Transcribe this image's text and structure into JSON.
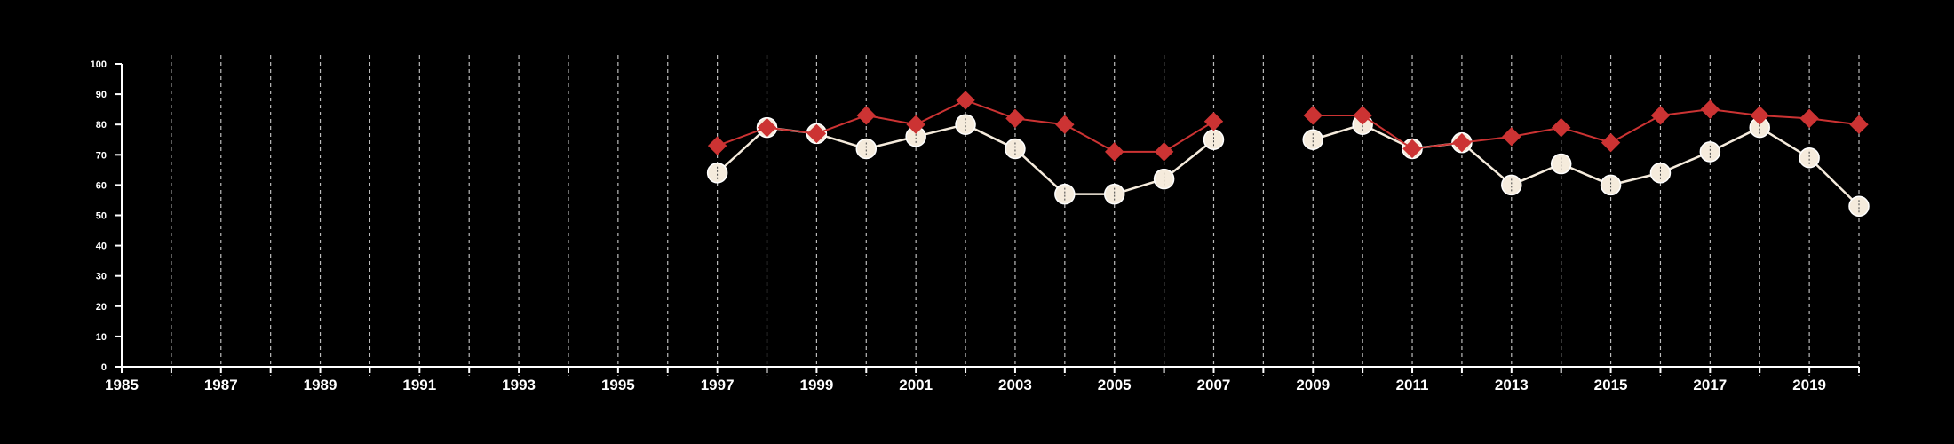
{
  "chart_data": {
    "type": "line",
    "title": "",
    "xlabel": "",
    "ylabel": "",
    "xlim": [
      1985,
      2020
    ],
    "ylim": [
      0,
      100
    ],
    "grid": "vertical dashed lines at each year",
    "x_ticks": [
      1985,
      1986,
      1987,
      1988,
      1989,
      1990,
      1991,
      1992,
      1993,
      1994,
      1995,
      1996,
      1997,
      1998,
      1999,
      2000,
      2001,
      2002,
      2003,
      2004,
      2005,
      2006,
      2007,
      2008,
      2009,
      2010,
      2011,
      2012,
      2013,
      2014,
      2015,
      2016,
      2017,
      2018,
      2019,
      2020
    ],
    "x_tick_labels": [
      "1985",
      "1987",
      "1989",
      "1991",
      "1993",
      "1995",
      "1997",
      "1999",
      "2001",
      "2003",
      "2005",
      "2007",
      "2009",
      "2011",
      "2013",
      "2015",
      "2017",
      "2019"
    ],
    "y_ticks": [
      0,
      10,
      20,
      30,
      40,
      50,
      60,
      70,
      80,
      90,
      100
    ],
    "y_tick_labels": [
      "0",
      "10",
      "20",
      "30",
      "40",
      "50",
      "60",
      "70",
      "80",
      "90",
      "100"
    ],
    "series": [
      {
        "marker": "diamond",
        "color": "#cc3333",
        "segments": [
          [
            [
              1997,
              73
            ],
            [
              1998,
              79
            ],
            [
              1999,
              77
            ],
            [
              2000,
              83
            ],
            [
              2001,
              80
            ],
            [
              2002,
              88
            ],
            [
              2003,
              82
            ],
            [
              2004,
              80
            ],
            [
              2005,
              71
            ],
            [
              2006,
              71
            ],
            [
              2007,
              81
            ]
          ],
          [
            [
              2009,
              83
            ],
            [
              2010,
              83
            ],
            [
              2011,
              72
            ],
            [
              2012,
              74
            ],
            [
              2013,
              76
            ],
            [
              2014,
              79
            ],
            [
              2015,
              74
            ],
            [
              2016,
              83
            ],
            [
              2017,
              85
            ],
            [
              2018,
              83
            ],
            [
              2019,
              82
            ],
            [
              2020,
              80
            ]
          ]
        ]
      },
      {
        "marker": "circle",
        "color": "#f5ebdc",
        "segments": [
          [
            [
              1997,
              64
            ],
            [
              1998,
              79
            ],
            [
              1999,
              77
            ],
            [
              2000,
              72
            ],
            [
              2001,
              76
            ],
            [
              2002,
              80
            ],
            [
              2003,
              72
            ],
            [
              2004,
              57
            ],
            [
              2005,
              57
            ],
            [
              2006,
              62
            ],
            [
              2007,
              75
            ]
          ],
          [
            [
              2009,
              75
            ],
            [
              2010,
              80
            ],
            [
              2011,
              72
            ],
            [
              2012,
              74
            ],
            [
              2013,
              60
            ],
            [
              2014,
              67
            ],
            [
              2015,
              60
            ],
            [
              2016,
              64
            ],
            [
              2017,
              71
            ],
            [
              2018,
              79
            ],
            [
              2019,
              69
            ],
            [
              2020,
              53
            ]
          ]
        ]
      }
    ]
  }
}
